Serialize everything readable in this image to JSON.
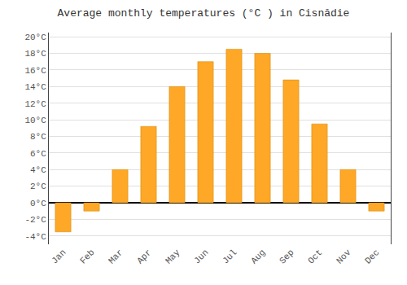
{
  "chart_data": {
    "type": "bar",
    "title": "Average monthly temperatures (°C ) in Cisnădie",
    "categories": [
      "Jan",
      "Feb",
      "Mar",
      "Apr",
      "May",
      "Jun",
      "Jul",
      "Aug",
      "Sep",
      "Oct",
      "Nov",
      "Dec"
    ],
    "values": [
      -3.5,
      -1.0,
      4.0,
      9.2,
      14.0,
      17.0,
      18.5,
      18.0,
      14.8,
      9.5,
      4.0,
      -1.0
    ],
    "color": "#FFA726",
    "ylim": [
      -5,
      20.5
    ],
    "yticks": [
      {
        "value": -4,
        "label": "-4°C"
      },
      {
        "value": -2,
        "label": "-2°C"
      },
      {
        "value": 0,
        "label": "0°C"
      },
      {
        "value": 2,
        "label": "2°C"
      },
      {
        "value": 4,
        "label": "4°C"
      },
      {
        "value": 6,
        "label": "6°C"
      },
      {
        "value": 8,
        "label": "8°C"
      },
      {
        "value": 10,
        "label": "10°C"
      },
      {
        "value": 12,
        "label": "12°C"
      },
      {
        "value": 14,
        "label": "14°C"
      },
      {
        "value": 16,
        "label": "16°C"
      },
      {
        "value": 18,
        "label": "18°C"
      },
      {
        "value": 20,
        "label": "20°C"
      }
    ],
    "grid": true
  }
}
